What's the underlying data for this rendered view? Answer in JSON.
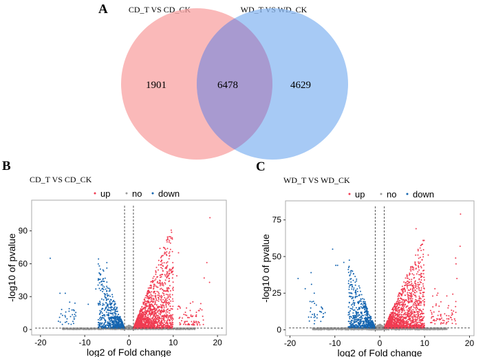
{
  "chart_data": [
    {
      "type": "venn",
      "panel_label": "A",
      "sets": [
        {
          "name": "CD_T VS CD_CK",
          "color": "#f8a1a1"
        },
        {
          "name": "WD_T VS WD_CK",
          "color": "#8ab8f2"
        }
      ],
      "regions": {
        "only_left": "1901",
        "intersection": "6478",
        "only_right": "4629"
      }
    },
    {
      "type": "scatter",
      "panel_label": "B",
      "title": "CD_T VS CD_CK",
      "xlabel": "log2 of Fold change",
      "ylabel": "-log10 of pvalue",
      "xlim": [
        -22,
        22
      ],
      "ylim": [
        -5,
        118
      ],
      "xticks": [
        "-20",
        "-10",
        "0",
        "10",
        "20"
      ],
      "xtick_values": [
        -20,
        -10,
        0,
        10,
        20
      ],
      "yticks": [
        "0",
        "30",
        "60",
        "90"
      ],
      "ytick_values": [
        0,
        30,
        60,
        90
      ],
      "legend": [
        {
          "label": "up",
          "color": "#f03c52"
        },
        {
          "label": "no",
          "color": "#999999"
        },
        {
          "label": "down",
          "color": "#1565b0"
        }
      ],
      "legend_position": "top",
      "fc_threshold": 1,
      "p_threshold": 1.3,
      "outliers_up": [
        [
          18.3,
          102
        ],
        [
          7,
          74
        ],
        [
          11.2,
          70
        ],
        [
          8,
          69
        ],
        [
          7.2,
          62
        ],
        [
          17.6,
          61
        ],
        [
          9.9,
          61
        ],
        [
          10.8,
          49
        ],
        [
          17,
          47
        ],
        [
          18.2,
          43
        ]
      ],
      "outliers_down": [
        [
          -17.8,
          65
        ],
        [
          -5,
          61
        ],
        [
          -5,
          56
        ],
        [
          -5.8,
          44
        ],
        [
          -14.4,
          33
        ],
        [
          -15.6,
          33
        ],
        [
          -7.5,
          37
        ],
        [
          -13.4,
          25
        ],
        [
          -12.2,
          24
        ],
        [
          -9.2,
          23
        ]
      ],
      "max_y_up_slope": 9,
      "max_y_down_slope": 11
    },
    {
      "type": "scatter",
      "panel_label": "C",
      "title": "WD_T VS WD_CK",
      "xlabel": "log2 of Fold change",
      "ylabel": "-log10 of pvalue",
      "xlim": [
        -21,
        21
      ],
      "ylim": [
        -4,
        88
      ],
      "xticks": [
        "-20",
        "-10",
        "0",
        "10",
        "20"
      ],
      "xtick_values": [
        -20,
        -10,
        0,
        10,
        20
      ],
      "yticks": [
        "0",
        "25",
        "50",
        "75"
      ],
      "ytick_values": [
        0,
        25,
        50,
        75
      ],
      "legend": [
        {
          "label": "up",
          "color": "#f03c52"
        },
        {
          "label": "no",
          "color": "#999999"
        },
        {
          "label": "down",
          "color": "#1565b0"
        }
      ],
      "legend_position": "top",
      "fc_threshold": 1,
      "p_threshold": 1.3,
      "outliers_up": [
        [
          18,
          79
        ],
        [
          8.1,
          69
        ],
        [
          9.9,
          61
        ],
        [
          17.9,
          57
        ],
        [
          9.3,
          58
        ],
        [
          10.8,
          51
        ],
        [
          16.9,
          49
        ],
        [
          17,
          45
        ],
        [
          12.3,
          28
        ],
        [
          17.2,
          35
        ]
      ],
      "outliers_down": [
        [
          -10.5,
          55
        ],
        [
          -8,
          46
        ],
        [
          -9.8,
          44
        ],
        [
          -9.4,
          44
        ],
        [
          -18.2,
          35
        ],
        [
          -15.3,
          39
        ],
        [
          -6.5,
          40
        ],
        [
          -16.6,
          28
        ],
        [
          -15.2,
          31
        ],
        [
          -14.6,
          25
        ]
      ],
      "max_y_up_slope": 6,
      "max_y_down_slope": 8
    }
  ]
}
